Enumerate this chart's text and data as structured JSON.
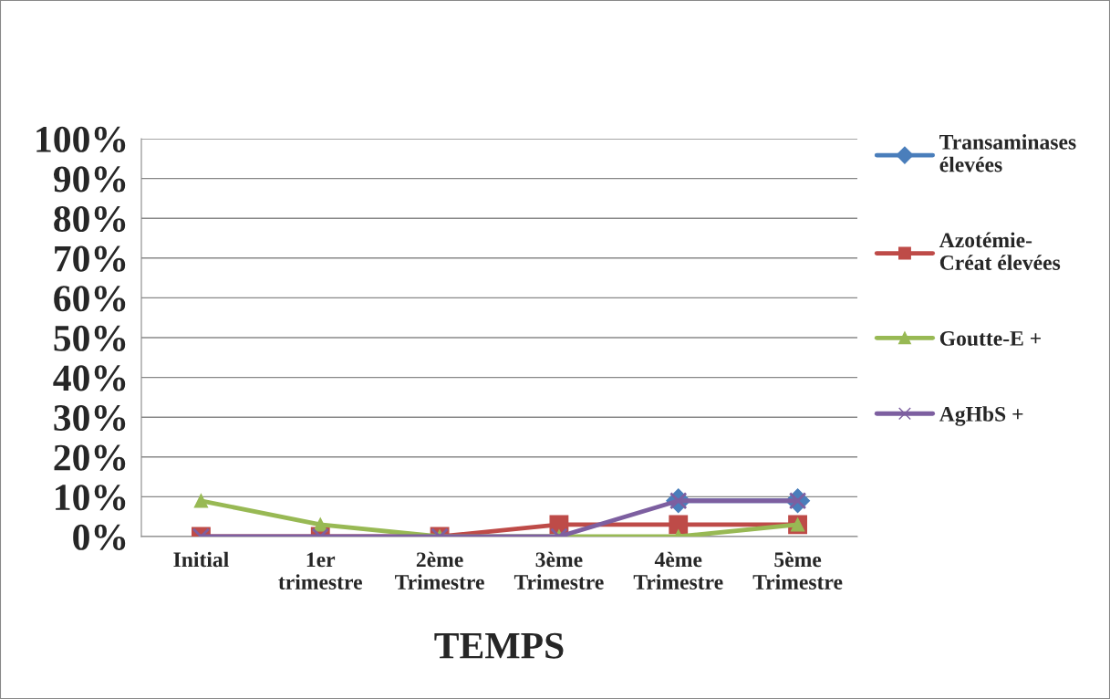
{
  "chart_data": {
    "type": "line",
    "xlabel": "TEMPS",
    "categories": [
      "Initial",
      "1er\ntrimestre",
      "2ème\nTrimestre",
      "3ème\nTrimestre",
      "4ème\nTrimestre",
      "5ème\nTrimestre"
    ],
    "series": [
      {
        "name": "Transaminases\nélevées",
        "color": "#4a7ebb",
        "marker": "diamond",
        "values": [
          null,
          null,
          null,
          null,
          9,
          9
        ]
      },
      {
        "name": "Azotémie-\nCréat élevées",
        "color": "#be4b48",
        "marker": "square",
        "values": [
          0,
          0,
          0,
          3,
          3,
          3
        ]
      },
      {
        "name": "Goutte-E +",
        "color": "#98b954",
        "marker": "triangle",
        "values": [
          9,
          3,
          0,
          0,
          0,
          3
        ]
      },
      {
        "name": "AgHbS +",
        "color": "#7d5fa0",
        "marker": "cross",
        "values": [
          0,
          0,
          0,
          0,
          9,
          9
        ]
      }
    ],
    "ylim": [
      0,
      100
    ],
    "yticks": [
      {
        "value": 0,
        "label": "0%"
      },
      {
        "value": 10,
        "label": "10%"
      },
      {
        "value": 20,
        "label": "20%"
      },
      {
        "value": 30,
        "label": "30%"
      },
      {
        "value": 40,
        "label": "40%"
      },
      {
        "value": 50,
        "label": "50%"
      },
      {
        "value": 60,
        "label": "60%"
      },
      {
        "value": 70,
        "label": "70%"
      },
      {
        "value": 80,
        "label": "80%"
      },
      {
        "value": 90,
        "label": "90%"
      },
      {
        "value": 100,
        "label": "100%"
      }
    ],
    "grid": "y",
    "legend": "right",
    "line_style": "solid"
  }
}
